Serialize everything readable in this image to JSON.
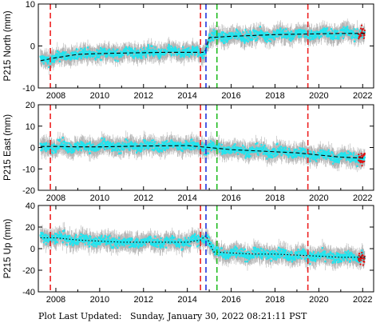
{
  "footer": {
    "prefix": "Plot Last Updated:",
    "timestamp": "Sunday, January 30, 2022 08:21:11 PST"
  },
  "colors": {
    "data": "#22e5ef",
    "errorbar": "#b4b4b4",
    "recent": "#dd1111",
    "model": "#000000",
    "event_red": "#ee2222",
    "event_blue": "#2233dd",
    "event_green": "#22bb22"
  },
  "chart_data": [
    {
      "type": "scatter",
      "ylabel": "P215 North (mm)",
      "xlim": [
        2007.2,
        2022.5
      ],
      "ylim": [
        -10,
        10
      ],
      "xticks": [
        2008,
        2010,
        2012,
        2014,
        2016,
        2018,
        2020,
        2022
      ],
      "yticks": [
        -10,
        0,
        10
      ],
      "events": [
        {
          "x": 2007.75,
          "color": "red"
        },
        {
          "x": 2014.6,
          "color": "red"
        },
        {
          "x": 2014.85,
          "color": "blue"
        },
        {
          "x": 2015.35,
          "color": "green"
        },
        {
          "x": 2019.5,
          "color": "red"
        }
      ],
      "model": {
        "x": [
          2007.3,
          2008,
          2009,
          2010,
          2011,
          2012,
          2013,
          2014,
          2014.8,
          2015,
          2016,
          2017,
          2018,
          2019,
          2020,
          2021,
          2022.1
        ],
        "y": [
          -3.5,
          -2.8,
          -2.0,
          -1.8,
          -1.7,
          -1.6,
          -1.5,
          -1.5,
          -1.5,
          2.0,
          2.3,
          2.5,
          2.7,
          2.8,
          2.9,
          3.0,
          3.0
        ]
      },
      "series": [
        {
          "values_x": [
            2007.3,
            2009,
            2011,
            2013,
            2014.7,
            2015.2,
            2017,
            2019,
            2021,
            2022.0
          ],
          "values_y": [
            -3.5,
            -2.0,
            -1.7,
            -1.5,
            -1.5,
            2.0,
            2.5,
            2.8,
            3.0,
            3.0
          ]
        }
      ]
    },
    {
      "type": "scatter",
      "ylabel": "P215 East (mm)",
      "xlim": [
        2007.2,
        2022.5
      ],
      "ylim": [
        -20,
        20
      ],
      "xticks": [
        2008,
        2010,
        2012,
        2014,
        2016,
        2018,
        2020,
        2022
      ],
      "yticks": [
        -20,
        -10,
        0,
        10,
        20
      ],
      "events": [
        {
          "x": 2007.75,
          "color": "red"
        },
        {
          "x": 2014.6,
          "color": "red"
        },
        {
          "x": 2014.85,
          "color": "blue"
        },
        {
          "x": 2015.35,
          "color": "green"
        },
        {
          "x": 2019.5,
          "color": "red"
        }
      ],
      "model": {
        "x": [
          2007.3,
          2008,
          2009,
          2010,
          2011,
          2012,
          2013,
          2014,
          2015,
          2016,
          2017,
          2018,
          2019,
          2020,
          2021,
          2022.1
        ],
        "y": [
          0.5,
          0.5,
          0.3,
          0.3,
          0.5,
          0.7,
          0.8,
          0.9,
          0.0,
          -1.0,
          -1.5,
          -2.0,
          -2.5,
          -3.5,
          -4.5,
          -5.0
        ]
      },
      "series": [
        {
          "values_x": [
            2007.3,
            2010,
            2013,
            2015,
            2018,
            2020,
            2022.0
          ],
          "values_y": [
            0.5,
            0.3,
            0.8,
            0.0,
            -2.0,
            -3.5,
            -5.0
          ]
        }
      ]
    },
    {
      "type": "scatter",
      "ylabel": "P215 Up (mm)",
      "xlim": [
        2007.2,
        2022.5
      ],
      "ylim": [
        -40,
        40
      ],
      "xticks": [
        2008,
        2010,
        2012,
        2014,
        2016,
        2018,
        2020,
        2022
      ],
      "yticks": [
        -40,
        -20,
        0,
        20,
        40
      ],
      "events": [
        {
          "x": 2007.75,
          "color": "red"
        },
        {
          "x": 2014.6,
          "color": "red"
        },
        {
          "x": 2014.85,
          "color": "blue"
        },
        {
          "x": 2015.35,
          "color": "green"
        },
        {
          "x": 2019.5,
          "color": "red"
        }
      ],
      "model": {
        "x": [
          2007.3,
          2008,
          2009,
          2010,
          2011,
          2012,
          2013,
          2014,
          2014.6,
          2014.85,
          2015.2,
          2016,
          2017,
          2018,
          2019,
          2020,
          2021,
          2022.1
        ],
        "y": [
          10,
          10,
          8,
          7,
          6,
          6,
          6,
          6,
          8,
          12,
          -3,
          -4,
          -5,
          -5,
          -6,
          -7,
          -8,
          -8
        ]
      },
      "series": [
        {
          "values_x": [
            2007.3,
            2010,
            2013,
            2014.7,
            2016,
            2019,
            2022.0
          ],
          "values_y": [
            10,
            7,
            6,
            10,
            -4,
            -6,
            -8
          ]
        }
      ]
    }
  ]
}
